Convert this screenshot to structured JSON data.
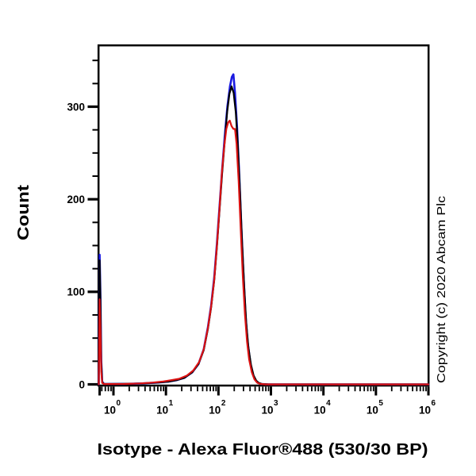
{
  "figure": {
    "copyright": "Copyright (c) 2020 Abcam Plc"
  },
  "chart_data": {
    "type": "line",
    "subtype": "flow-cytometry-histogram",
    "title": "",
    "xlabel": "Isotype - Alexa Fluor®488 (530/30 BP)",
    "ylabel": "Count",
    "grid": false,
    "legend": null,
    "x_scale": "log10",
    "x_axis": {
      "min_log10": -0.29,
      "max_log10": 6,
      "tick_base": "10",
      "tick_exponents": [
        "0",
        "1",
        "2",
        "3",
        "4",
        "5",
        "6"
      ]
    },
    "y_axis": {
      "min": 0,
      "max": 368,
      "major_ticks": [
        0,
        100,
        200,
        300
      ],
      "minor_tick_step": 25,
      "minor_tick_max": 350
    },
    "peak_summary": [
      {
        "series": "blue",
        "peak_count": 335,
        "peak_x_approx": 190,
        "edge_spike_count": 140
      },
      {
        "series": "black",
        "peak_count": 322,
        "peak_x_approx": 180,
        "edge_spike_count": 134
      },
      {
        "series": "red",
        "peak_count": 285,
        "peak_x_approx": 165,
        "edge_spike_count": 92
      }
    ],
    "series": [
      {
        "name": "blue",
        "color": "#1a1ae0",
        "stroke_width": 2.6,
        "points": [
          [
            -0.28,
            0
          ],
          [
            -0.263,
            140
          ],
          [
            -0.248,
            95
          ],
          [
            -0.232,
            26
          ],
          [
            -0.215,
            3
          ],
          [
            -0.18,
            0.4
          ],
          [
            0.2,
            0.5
          ],
          [
            0.55,
            1
          ],
          [
            0.85,
            2
          ],
          [
            1.05,
            3
          ],
          [
            1.2,
            4.5
          ],
          [
            1.35,
            7
          ],
          [
            1.5,
            13
          ],
          [
            1.62,
            22
          ],
          [
            1.72,
            38
          ],
          [
            1.8,
            62
          ],
          [
            1.86,
            85
          ],
          [
            1.92,
            115
          ],
          [
            1.97,
            152
          ],
          [
            2.02,
            192
          ],
          [
            2.07,
            232
          ],
          [
            2.12,
            268
          ],
          [
            2.17,
            300
          ],
          [
            2.22,
            322
          ],
          [
            2.255,
            332
          ],
          [
            2.285,
            335
          ],
          [
            2.315,
            315
          ],
          [
            2.355,
            278
          ],
          [
            2.395,
            228
          ],
          [
            2.435,
            172
          ],
          [
            2.475,
            120
          ],
          [
            2.515,
            76
          ],
          [
            2.555,
            46
          ],
          [
            2.605,
            24
          ],
          [
            2.655,
            11
          ],
          [
            2.705,
            4.5
          ],
          [
            2.755,
            1.5
          ],
          [
            2.82,
            0.3
          ],
          [
            2.95,
            0
          ],
          [
            6,
            0
          ]
        ]
      },
      {
        "name": "black",
        "color": "#000005",
        "stroke_width": 2.2,
        "points": [
          [
            -0.28,
            0
          ],
          [
            -0.263,
            134
          ],
          [
            -0.248,
            90
          ],
          [
            -0.232,
            24
          ],
          [
            -0.215,
            2.5
          ],
          [
            -0.18,
            0.4
          ],
          [
            0.2,
            0.5
          ],
          [
            0.55,
            1
          ],
          [
            0.85,
            2
          ],
          [
            1.05,
            3
          ],
          [
            1.2,
            4.5
          ],
          [
            1.35,
            7
          ],
          [
            1.5,
            13
          ],
          [
            1.62,
            22
          ],
          [
            1.72,
            37
          ],
          [
            1.8,
            60
          ],
          [
            1.86,
            83
          ],
          [
            1.92,
            112
          ],
          [
            1.97,
            148
          ],
          [
            2.02,
            188
          ],
          [
            2.07,
            228
          ],
          [
            2.12,
            263
          ],
          [
            2.165,
            294
          ],
          [
            2.21,
            314
          ],
          [
            2.25,
            322
          ],
          [
            2.29,
            315
          ],
          [
            2.33,
            294
          ],
          [
            2.37,
            258
          ],
          [
            2.41,
            208
          ],
          [
            2.45,
            154
          ],
          [
            2.49,
            106
          ],
          [
            2.53,
            66
          ],
          [
            2.57,
            40
          ],
          [
            2.62,
            21
          ],
          [
            2.67,
            9.5
          ],
          [
            2.72,
            4
          ],
          [
            2.77,
            1.5
          ],
          [
            2.83,
            0.3
          ],
          [
            2.95,
            0
          ],
          [
            6,
            0
          ]
        ]
      },
      {
        "name": "red",
        "color": "#da1212",
        "stroke_width": 2.2,
        "points": [
          [
            -0.28,
            0
          ],
          [
            -0.263,
            92
          ],
          [
            -0.248,
            58
          ],
          [
            -0.232,
            14
          ],
          [
            -0.215,
            1.5
          ],
          [
            -0.18,
            0.3
          ],
          [
            0.2,
            0.4
          ],
          [
            0.5,
            1
          ],
          [
            0.75,
            2
          ],
          [
            0.95,
            3.2
          ],
          [
            1.1,
            4.5
          ],
          [
            1.25,
            6
          ],
          [
            1.4,
            9.5
          ],
          [
            1.52,
            15
          ],
          [
            1.63,
            24
          ],
          [
            1.72,
            38
          ],
          [
            1.8,
            61
          ],
          [
            1.86,
            84
          ],
          [
            1.92,
            113
          ],
          [
            1.97,
            150
          ],
          [
            2.02,
            190
          ],
          [
            2.065,
            228
          ],
          [
            2.11,
            257
          ],
          [
            2.15,
            276
          ],
          [
            2.185,
            283
          ],
          [
            2.215,
            285
          ],
          [
            2.25,
            279
          ],
          [
            2.285,
            276
          ],
          [
            2.315,
            276
          ],
          [
            2.345,
            260
          ],
          [
            2.385,
            220
          ],
          [
            2.425,
            166
          ],
          [
            2.465,
            116
          ],
          [
            2.505,
            75
          ],
          [
            2.545,
            46
          ],
          [
            2.585,
            27
          ],
          [
            2.635,
            13
          ],
          [
            2.685,
            5.5
          ],
          [
            2.735,
            2
          ],
          [
            2.79,
            0.5
          ],
          [
            2.9,
            0
          ],
          [
            6,
            0
          ]
        ]
      }
    ]
  }
}
